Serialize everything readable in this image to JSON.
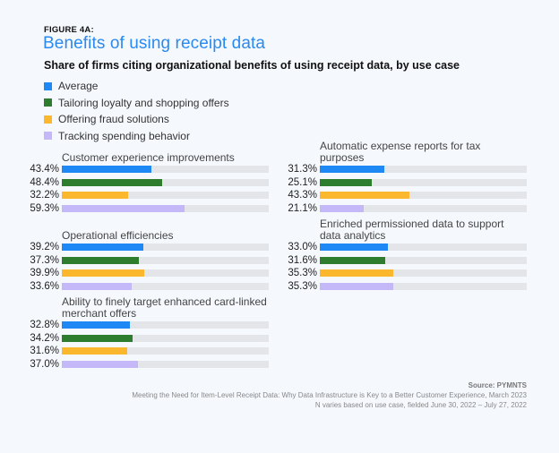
{
  "figure_label": "FIGURE 4A:",
  "chart_data": {
    "type": "bar",
    "orientation": "horizontal",
    "title": "Benefits of using receipt data",
    "subtitle": "Share of firms citing organizational benefits of using receipt data, by use case",
    "unit": "%",
    "xlim": [
      0,
      100
    ],
    "grid": false,
    "legend_position": "top-left",
    "series_names": [
      "Average",
      "Tailoring loyalty and shopping offers",
      "Offering fraud solutions",
      "Tracking spending behavior"
    ],
    "series_colors": [
      "#1e88f5",
      "#2e7d2e",
      "#fbb72d",
      "#c4b8f8"
    ],
    "track_color": "#e4e5e8",
    "panels": [
      {
        "category": "Customer experience improvements",
        "values": [
          43.4,
          48.4,
          32.2,
          59.3
        ],
        "labels": [
          "43.4%",
          "48.4%",
          "32.2%",
          "59.3%"
        ]
      },
      {
        "category": "Operational efficiencies",
        "values": [
          39.2,
          37.3,
          39.9,
          33.6
        ],
        "labels": [
          "39.2%",
          "37.3%",
          "39.9%",
          "33.6%"
        ]
      },
      {
        "category": "Ability to finely target enhanced card-linked merchant offers",
        "values": [
          32.8,
          34.2,
          31.6,
          37.0
        ],
        "labels": [
          "32.8%",
          "34.2%",
          "31.6%",
          "37.0%"
        ]
      },
      {
        "category": "Automatic expense reports for tax purposes",
        "values": [
          31.3,
          25.1,
          43.3,
          21.1
        ],
        "labels": [
          "31.3%",
          "25.1%",
          "43.3%",
          "21.1%"
        ]
      },
      {
        "category": "Enriched permissioned data to support data analytics",
        "values": [
          33.0,
          31.6,
          35.3,
          35.3
        ],
        "labels": [
          "33.0%",
          "31.6%",
          "35.3%",
          "35.3%"
        ]
      }
    ]
  },
  "footer": {
    "source": "Source: PYMNTS",
    "report": "Meeting the Need for Item-Level Receipt Data: Why Data Infrastructure is Key to a Better Customer Experience, March 2023",
    "note": "N varies based on use case, fielded June 30, 2022 – July 27, 2022"
  }
}
